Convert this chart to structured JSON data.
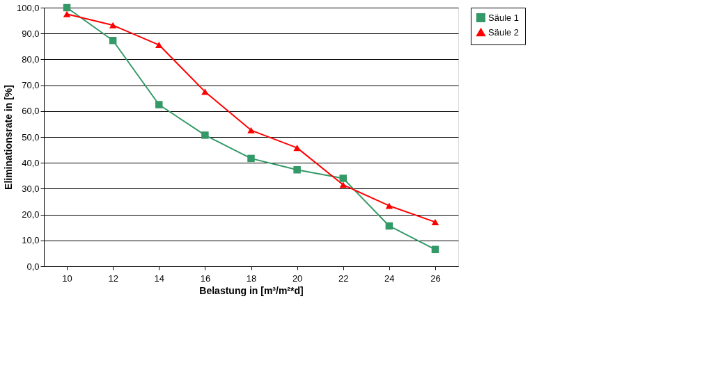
{
  "chart_data": {
    "type": "line",
    "xlabel": "Belastung in [m³/m²*d]",
    "ylabel": "Eliminationsrate in [%]",
    "categories": [
      "10",
      "12",
      "14",
      "16",
      "18",
      "20",
      "22",
      "24",
      "26"
    ],
    "series": [
      {
        "name": "Säule 1",
        "color": "#339966",
        "marker": "square",
        "values": [
          100.0,
          87.3,
          62.5,
          50.7,
          41.7,
          37.3,
          34.0,
          15.6,
          6.5
        ]
      },
      {
        "name": "Säule 2",
        "color": "#ff0000",
        "marker": "triangle",
        "values": [
          97.5,
          93.2,
          85.6,
          67.5,
          52.6,
          45.8,
          31.5,
          23.4,
          17.1
        ]
      }
    ],
    "ylim": [
      0,
      100
    ],
    "yticks": [
      {
        "value": 0,
        "label": "0,0"
      },
      {
        "value": 10,
        "label": "10,0"
      },
      {
        "value": 20,
        "label": "20,0"
      },
      {
        "value": 30,
        "label": "30,0"
      },
      {
        "value": 40,
        "label": "40,0"
      },
      {
        "value": 50,
        "label": "50,0"
      },
      {
        "value": 60,
        "label": "60,0"
      },
      {
        "value": 70,
        "label": "70,0"
      },
      {
        "value": 80,
        "label": "80,0"
      },
      {
        "value": 90,
        "label": "90,0"
      },
      {
        "value": 100,
        "label": "100,0"
      }
    ],
    "grid": "y",
    "legend": "right",
    "line_style": "solid"
  }
}
